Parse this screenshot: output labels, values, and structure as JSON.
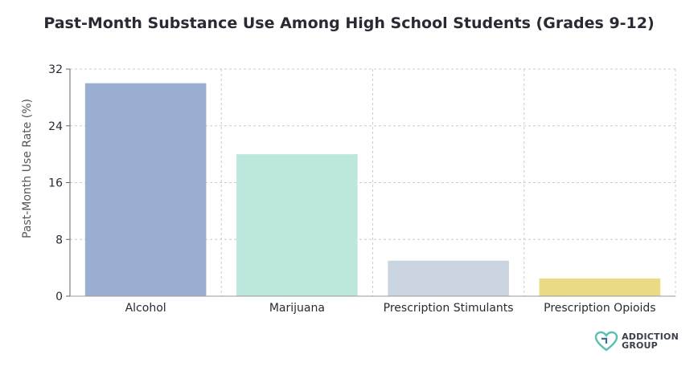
{
  "chart_data": {
    "type": "bar",
    "title": "Past-Month Substance Use Among High School Students (Grades 9-12)",
    "xlabel": "",
    "ylabel": "Past-Month Use Rate (%)",
    "ylim": [
      0,
      32
    ],
    "yticks": [
      0,
      8,
      16,
      24,
      32
    ],
    "grid": true,
    "categories": [
      "Alcohol",
      "Marijuana",
      "Prescription Stimulants",
      "Prescription Opioids"
    ],
    "values": [
      30.0,
      20.0,
      5.0,
      2.5
    ],
    "colors": [
      "#9aaed2",
      "#bce7dc",
      "#cbd5e1",
      "#eadb84"
    ]
  },
  "logo": {
    "line1": "ADDICTION",
    "line2": "GROUP",
    "icon": "heart-logo-icon"
  }
}
